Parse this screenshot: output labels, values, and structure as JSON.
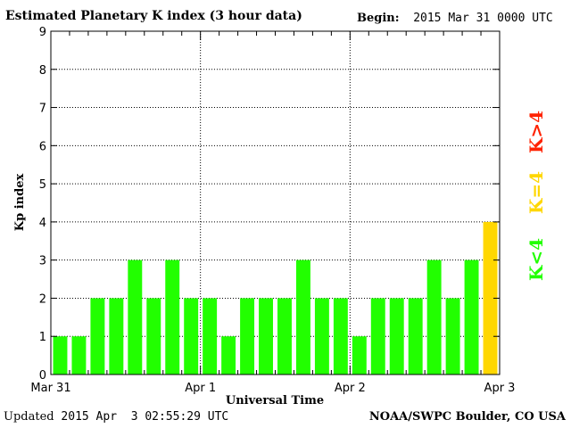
{
  "header": {
    "title": "Estimated Planetary K index (3 hour data)",
    "begin_label": "Begin:",
    "begin_value": "2015 Mar 31 0000 UTC"
  },
  "footer": {
    "updated_label": "Updated",
    "updated_value": "2015 Apr  3 02:55:29 UTC",
    "source": "NOAA/SWPC Boulder, CO USA"
  },
  "legend": {
    "high": "K>4",
    "equal": "K=4",
    "low": "K<4"
  },
  "colors": {
    "low": "#22ff00",
    "equal": "#ffd700",
    "high": "#ff2200",
    "grid": "#000000"
  },
  "chart_data": {
    "type": "bar",
    "xlabel": "Universal Time",
    "ylabel": "Kp index",
    "ylim": [
      0,
      9
    ],
    "yticks": [
      "0",
      "1",
      "2",
      "3",
      "4",
      "5",
      "6",
      "7",
      "8",
      "9"
    ],
    "xtick_labels": [
      "Mar 31",
      "Apr 1",
      "Apr 2",
      "Apr 3"
    ],
    "interval_hours": 3,
    "values": [
      1,
      1,
      2,
      2,
      3,
      2,
      3,
      2,
      2,
      1,
      2,
      2,
      2,
      3,
      2,
      2,
      1,
      2,
      2,
      2,
      3,
      2,
      3,
      4
    ],
    "grid": "dotted"
  }
}
